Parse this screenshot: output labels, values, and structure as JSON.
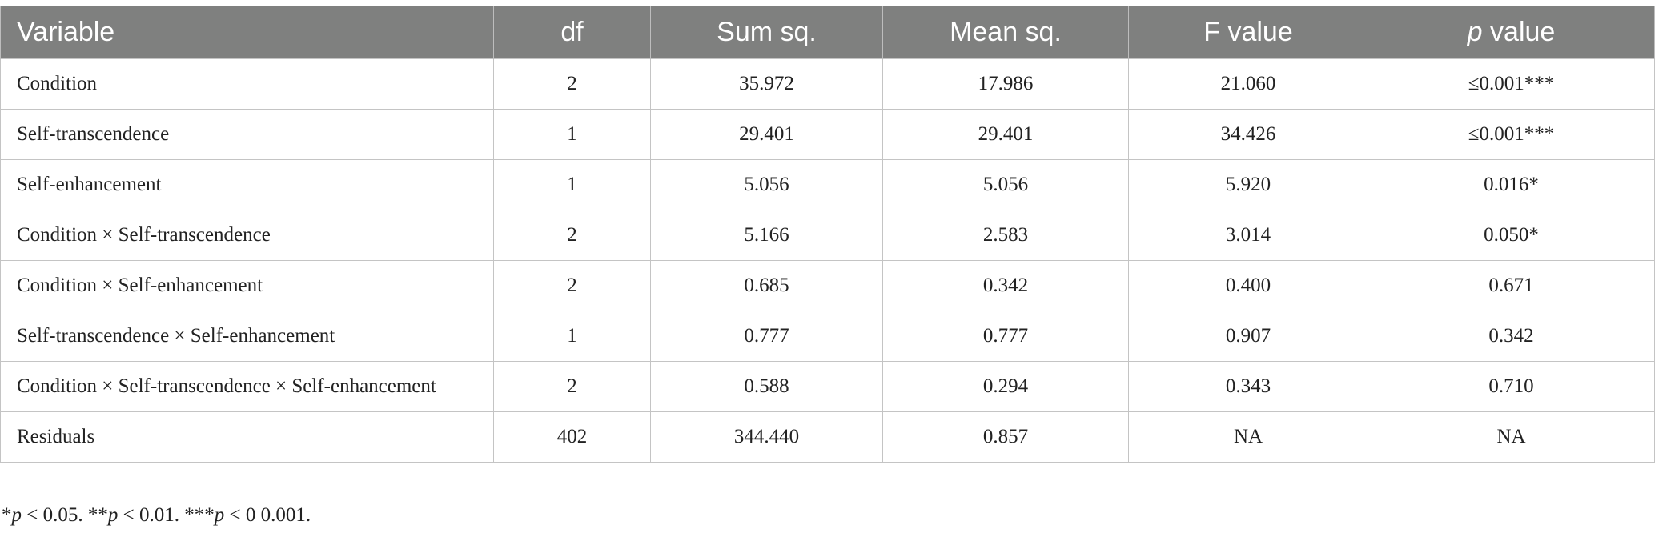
{
  "table": {
    "header": [
      "Variable",
      "df",
      "Sum sq.",
      "Mean sq.",
      "F value",
      [
        "p",
        " value"
      ]
    ],
    "rows": [
      [
        "Condition",
        "2",
        "35.972",
        "17.986",
        "21.060",
        "≤0.001***"
      ],
      [
        "Self-transcendence",
        "1",
        "29.401",
        "29.401",
        "34.426",
        "≤0.001***"
      ],
      [
        "Self-enhancement",
        "1",
        "5.056",
        "5.056",
        "5.920",
        "0.016*"
      ],
      [
        "Condition × Self-transcendence",
        "2",
        "5.166",
        "2.583",
        "3.014",
        "0.050*"
      ],
      [
        "Condition × Self-enhancement",
        "2",
        "0.685",
        "0.342",
        "0.400",
        "0.671"
      ],
      [
        "Self-transcendence × Self-enhancement",
        "1",
        "0.777",
        "0.777",
        "0.907",
        "0.342"
      ],
      [
        "Condition × Self-transcendence × Self-enhancement",
        "2",
        "0.588",
        "0.294",
        "0.343",
        "0.710"
      ],
      [
        "Residuals",
        "402",
        "344.440",
        "0.857",
        "NA",
        "NA"
      ]
    ]
  },
  "footnote": [
    "*",
    "p",
    " < 0.05. **",
    "p",
    " < 0.01. ***",
    "p",
    " < 0 0.001."
  ]
}
